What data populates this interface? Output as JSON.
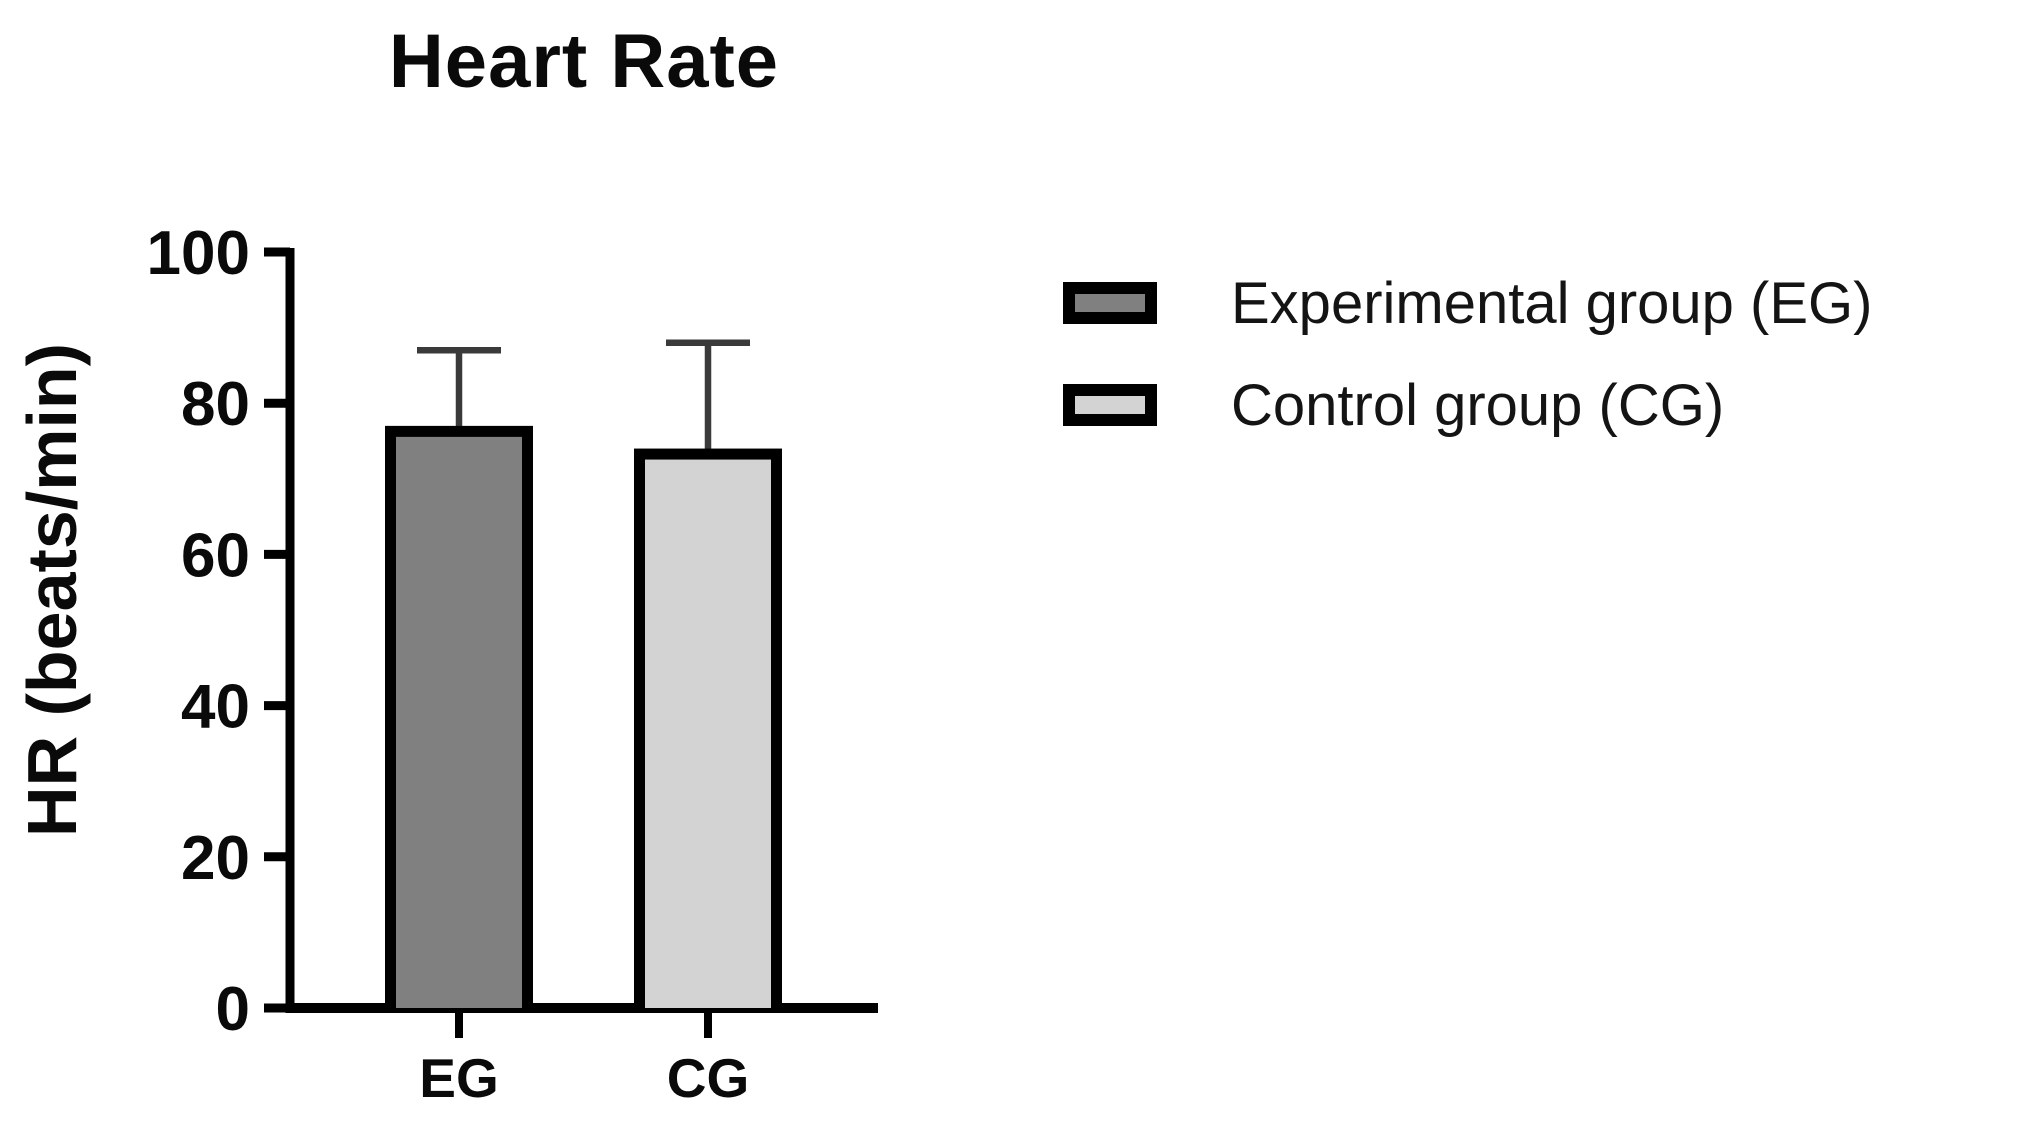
{
  "chart_data": {
    "type": "bar",
    "title": "Heart Rate",
    "ylabel": "HR (beats/min)",
    "xlabel": "",
    "categories": [
      "EG",
      "CG"
    ],
    "series": [
      {
        "name": "Experimental group (EG)",
        "category": "EG",
        "value": 77,
        "error_up": 10,
        "fill": "#808080"
      },
      {
        "name": "Control group (CG)",
        "category": "CG",
        "value": 74,
        "error_up": 14,
        "fill": "#d3d3d3"
      }
    ],
    "ylim": [
      0,
      100
    ],
    "yticks": [
      0,
      20,
      40,
      60,
      80,
      100
    ],
    "grid": false,
    "legend_position": "right",
    "bar_border_color": "#000000",
    "error_bar_color": "#3a3a3a",
    "axis_color": "#000000",
    "text_color": "#0a0a0a"
  }
}
